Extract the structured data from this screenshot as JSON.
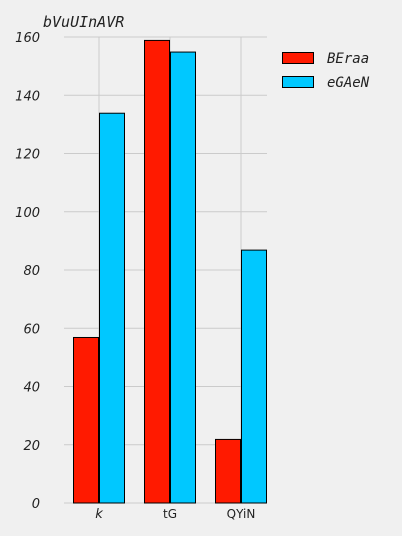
{
  "chart_data": {
    "type": "bar",
    "title": "bVuUInAVR",
    "xlabel": "",
    "ylabel": "",
    "categories": [
      "k",
      "tG",
      "QYiN"
    ],
    "series": [
      {
        "name": "BEraa",
        "values": [
          57,
          159,
          22
        ],
        "color": "#ff1a00"
      },
      {
        "name": "eGAeN",
        "values": [
          134,
          155,
          87
        ],
        "color": "#00c8ff"
      }
    ],
    "ylim": [
      0,
      160
    ],
    "yticks": [
      "0",
      "20",
      "40",
      "60",
      "80",
      "100",
      "120",
      "140",
      "160"
    ],
    "grid": true,
    "legend_position": "right"
  }
}
